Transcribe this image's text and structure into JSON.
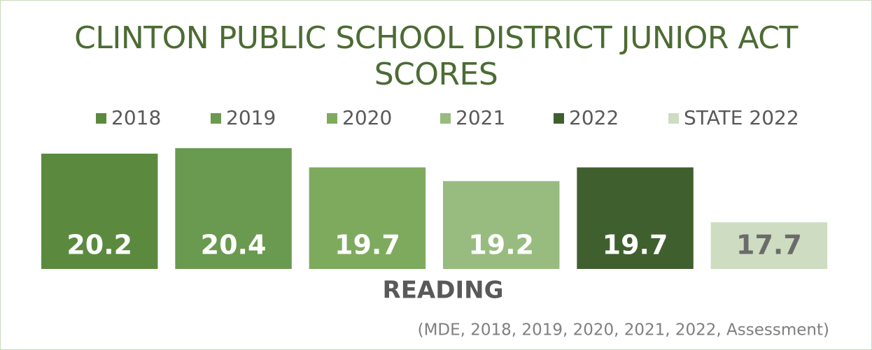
{
  "chart_data": {
    "type": "bar",
    "title": "CLINTON PUBLIC SCHOOL DISTRICT JUNIOR ACT SCORES",
    "categories": [
      "READING"
    ],
    "series": [
      {
        "name": "2018",
        "color": "#5b8a3f",
        "values": [
          20.2
        ]
      },
      {
        "name": "2019",
        "color": "#6a9950",
        "values": [
          20.4
        ]
      },
      {
        "name": "2020",
        "color": "#7eaa5e",
        "values": [
          19.7
        ]
      },
      {
        "name": "2021",
        "color": "#98bb7f",
        "values": [
          19.2
        ]
      },
      {
        "name": "2022",
        "color": "#405f2e",
        "values": [
          19.7
        ]
      },
      {
        "name": "STATE 2022",
        "color": "#cedcc2",
        "values": [
          17.7
        ]
      }
    ],
    "ylim": [
      16,
      21
    ],
    "legend": "top",
    "source": "(MDE, 2018, 2019, 2020, 2021, 2022, Assessment)"
  }
}
